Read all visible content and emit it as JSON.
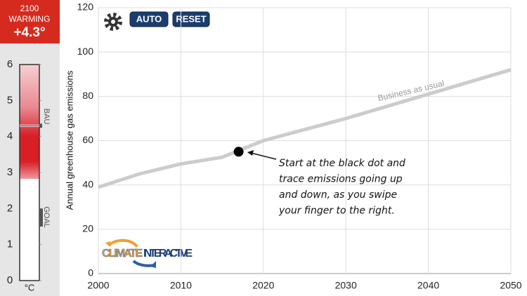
{
  "ui": {
    "warming": {
      "year": "2100",
      "label": "WARMING",
      "value_text": "+4.3°",
      "value": 4.3
    },
    "thermometer": {
      "ylim": [
        0,
        6
      ],
      "yticks": [
        0,
        1,
        2,
        3,
        4,
        5,
        6
      ],
      "unit": "°C",
      "bau_label": "BAU",
      "goal_label": "GOAL",
      "goal_range": [
        1.5,
        2
      ]
    },
    "buttons": [
      "AUTO",
      "RESET"
    ],
    "logo": [
      "CLIMATE",
      "INTERACTIVE"
    ],
    "annotation": [
      "Start at the black dot and",
      "trace emissions going up",
      "and down, as you swipe",
      "your finger to the right."
    ],
    "start_point": {
      "x": 2017,
      "y": 55
    }
  },
  "chart_data": {
    "type": "line",
    "y_label": "Annual greenhouse gas emissions",
    "x": [
      2000,
      2005,
      2010,
      2015,
      2020,
      2030,
      2040,
      2050
    ],
    "series": [
      {
        "name": "Business as usual",
        "color": "#cccccc",
        "values": [
          39,
          45,
          49.5,
          52.5,
          60,
          70,
          81,
          92
        ]
      }
    ],
    "xlim": [
      2000,
      2050
    ],
    "xticks": [
      2000,
      2010,
      2020,
      2030,
      2040,
      2050
    ],
    "ylim": [
      0,
      120
    ],
    "yticks": [
      0,
      20,
      40,
      60,
      80,
      100,
      120
    ],
    "grid": true
  }
}
